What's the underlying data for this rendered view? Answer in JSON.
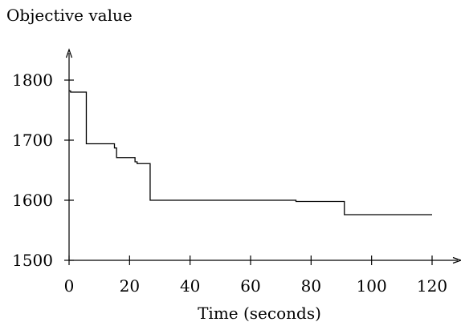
{
  "chart_data": {
    "type": "line",
    "line_style": "step",
    "title": "",
    "xlabel": "Time (seconds)",
    "ylabel": "Objective value",
    "xlim": [
      0,
      120
    ],
    "ylim": [
      1500,
      1820
    ],
    "x_ticks": [
      0,
      20,
      40,
      60,
      80,
      100,
      120
    ],
    "y_ticks": [
      1500,
      1600,
      1700,
      1800
    ],
    "x_tick_labels": [
      "0",
      "20",
      "40",
      "60",
      "80",
      "100",
      "120"
    ],
    "y_tick_labels": [
      "1500",
      "1600",
      "1700",
      "1800"
    ],
    "grid": false,
    "legend": "none",
    "line_color": "#000000",
    "series": [
      {
        "x": [
          0,
          0.5,
          0.5,
          5.7,
          5.7,
          15.0,
          15.0,
          15.7,
          15.7,
          21.8,
          21.8,
          22.5,
          22.5,
          26.8,
          26.8,
          75.0,
          75.0,
          91.0,
          91.0,
          120.0
        ],
        "y": [
          1782,
          1782,
          1780,
          1780,
          1694,
          1694,
          1687,
          1687,
          1671,
          1671,
          1664,
          1664,
          1661,
          1661,
          1600,
          1600,
          1598,
          1598,
          1576,
          1576
        ]
      }
    ]
  }
}
